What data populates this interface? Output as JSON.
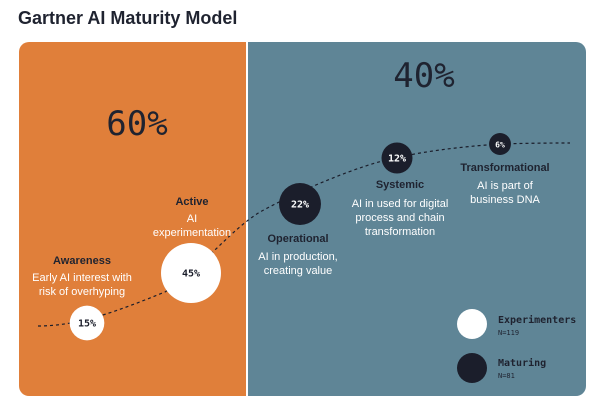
{
  "title": "Gartner AI Maturity Model",
  "colors": {
    "experimenters_panel": "#E07F3A",
    "maturing_panel": "#5F8596",
    "dark": "#1B1E2B",
    "light": "#FFFFFF"
  },
  "segments": {
    "experimenters_pct": "60%",
    "maturing_pct": "40%"
  },
  "stages": [
    {
      "name": "Awareness",
      "desc": [
        "Early AI interest with",
        "risk of overhyping"
      ],
      "pct": "15%",
      "value": 15,
      "group": "experimenters"
    },
    {
      "name": "Active",
      "desc": [
        "AI",
        "experimentation"
      ],
      "pct": "45%",
      "value": 45,
      "group": "experimenters"
    },
    {
      "name": "Operational",
      "desc": [
        "AI in production,",
        "creating value"
      ],
      "pct": "22%",
      "value": 22,
      "group": "maturing"
    },
    {
      "name": "Systemic",
      "desc": [
        "AI in used for digital",
        "process and chain",
        "transformation"
      ],
      "pct": "12%",
      "value": 12,
      "group": "maturing"
    },
    {
      "name": "Transformational",
      "desc": [
        "AI is part of",
        "business DNA"
      ],
      "pct": "6%",
      "value": 6,
      "group": "maturing"
    }
  ],
  "legend": [
    {
      "label": "Experimenters",
      "n": "N=119",
      "color": "#FFFFFF"
    },
    {
      "label": "Maturing",
      "n": "N=81",
      "color": "#1B1E2B"
    }
  ]
}
